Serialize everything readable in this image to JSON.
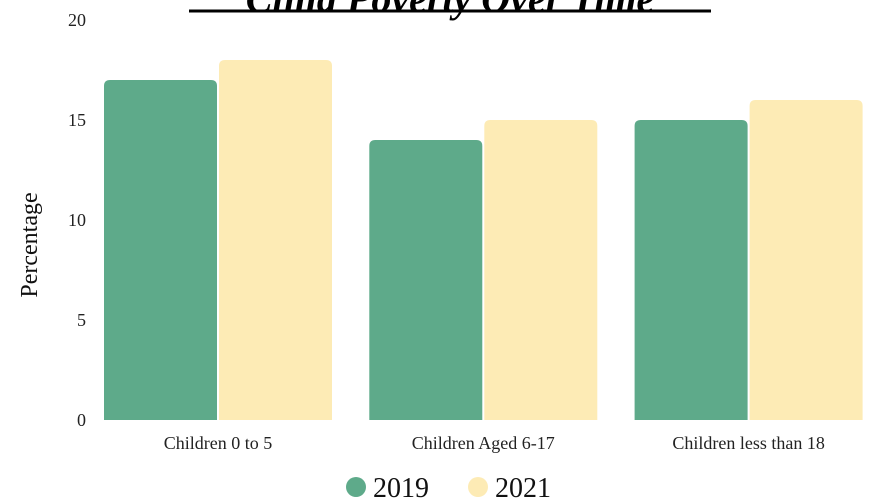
{
  "chart_data": {
    "type": "bar",
    "title": "Child Poverty Over Time",
    "ylabel": "Percentage",
    "xlabel": "",
    "categories": [
      "Children 0 to 5",
      "Children Aged 6-17",
      "Children less than 18"
    ],
    "series": [
      {
        "name": "2019",
        "values": [
          17,
          14,
          15
        ],
        "color": "#5eaa8a"
      },
      {
        "name": "2021",
        "values": [
          18,
          15,
          16
        ],
        "color": "#fdebb5"
      }
    ],
    "ylim": [
      0,
      20
    ],
    "yticks": [
      0,
      5,
      10,
      15,
      20
    ],
    "grid": false,
    "legend_position": "bottom-center"
  }
}
